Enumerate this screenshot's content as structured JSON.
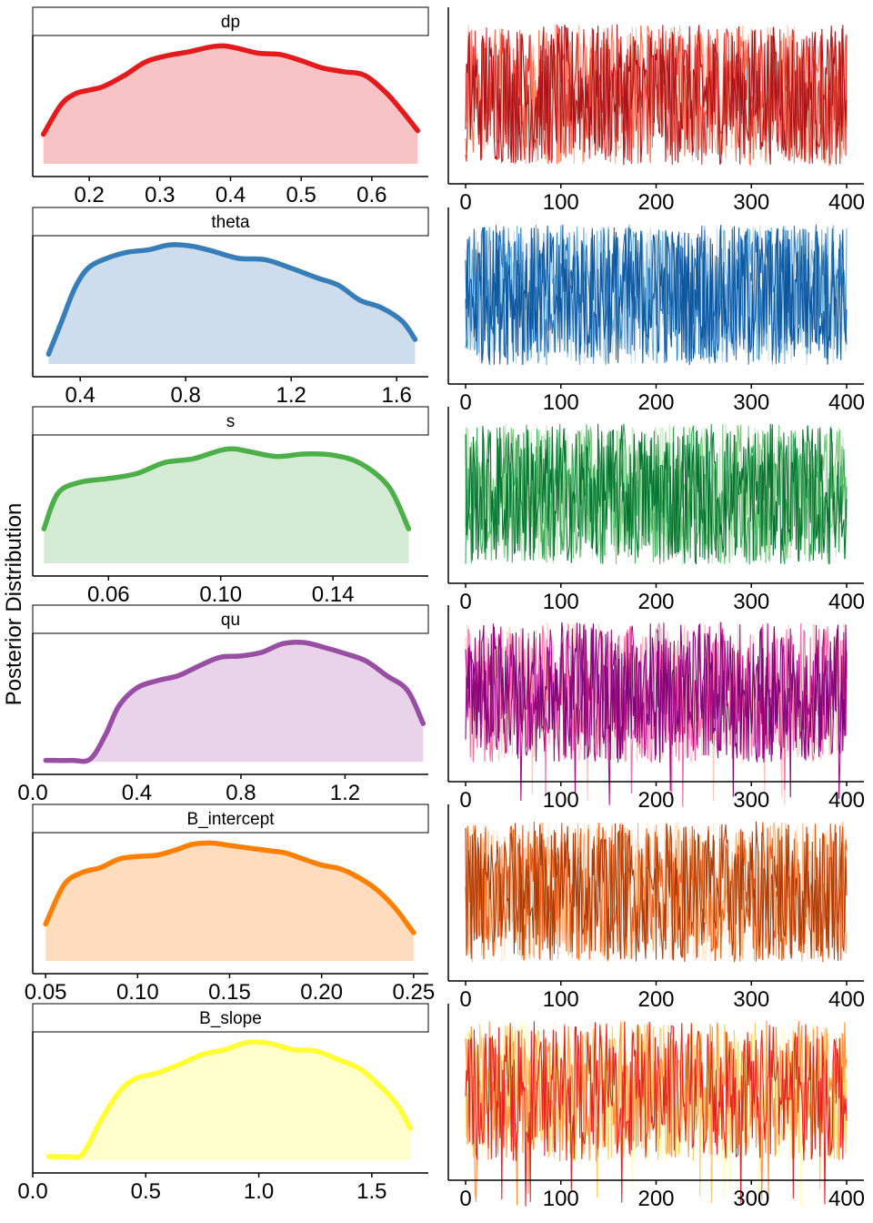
{
  "page": {
    "ylabel": "Posterior Distribution"
  },
  "chart_data": [
    {
      "type": "area",
      "role": "density",
      "title": "dp",
      "color": "#e41a1c",
      "fill": "#f7c3c4",
      "xlim": [
        0.12,
        0.68
      ],
      "xticks": [
        0.2,
        0.3,
        0.4,
        0.5,
        0.6
      ],
      "xtick_labels": [
        "0.2",
        "0.3",
        "0.4",
        "0.5",
        "0.6"
      ],
      "x": [
        0.135,
        0.16,
        0.18,
        0.2,
        0.22,
        0.25,
        0.28,
        0.31,
        0.34,
        0.37,
        0.39,
        0.41,
        0.44,
        0.47,
        0.5,
        0.53,
        0.56,
        0.59,
        0.62,
        0.64,
        0.665
      ],
      "y": [
        0.24,
        0.48,
        0.57,
        0.6,
        0.63,
        0.72,
        0.83,
        0.88,
        0.91,
        0.95,
        0.96,
        0.94,
        0.9,
        0.89,
        0.84,
        0.78,
        0.75,
        0.72,
        0.58,
        0.45,
        0.27
      ]
    },
    {
      "type": "line",
      "role": "trace",
      "colors": [
        "#fcbba1",
        "#fb6a4a",
        "#de2d26",
        "#a50f15"
      ],
      "xlim": [
        0,
        400
      ],
      "xticks": [
        0,
        100,
        200,
        300,
        400
      ],
      "xtick_labels": [
        "0",
        "100",
        "200",
        "300",
        "400"
      ],
      "n": 400
    },
    {
      "type": "area",
      "role": "density",
      "title": "theta",
      "color": "#377eb8",
      "fill": "#cdddee",
      "xlim": [
        0.22,
        1.72
      ],
      "xticks": [
        0.4,
        0.8,
        1.2,
        1.6
      ],
      "xtick_labels": [
        "0.4",
        "0.8",
        "1.2",
        "1.6"
      ],
      "x": [
        0.28,
        0.33,
        0.38,
        0.43,
        0.5,
        0.58,
        0.66,
        0.74,
        0.82,
        0.9,
        1.0,
        1.1,
        1.2,
        1.3,
        1.38,
        1.46,
        1.54,
        1.62,
        1.67
      ],
      "y": [
        0.08,
        0.35,
        0.62,
        0.78,
        0.86,
        0.91,
        0.93,
        0.97,
        0.96,
        0.92,
        0.86,
        0.85,
        0.78,
        0.7,
        0.64,
        0.52,
        0.46,
        0.35,
        0.2
      ]
    },
    {
      "type": "line",
      "role": "trace",
      "colors": [
        "#c6dbef",
        "#6baed6",
        "#2171b5",
        "#08519c"
      ],
      "xlim": [
        0,
        400
      ],
      "xticks": [
        0,
        100,
        200,
        300,
        400
      ],
      "xtick_labels": [
        "0",
        "100",
        "200",
        "300",
        "400"
      ],
      "n": 400
    },
    {
      "type": "area",
      "role": "density",
      "title": "s",
      "color": "#4daf4a",
      "fill": "#d4ecd3",
      "xlim": [
        0.033,
        0.174
      ],
      "xticks": [
        0.06,
        0.1,
        0.14
      ],
      "xtick_labels": [
        "0.06",
        "0.10",
        "0.14"
      ],
      "x": [
        0.037,
        0.042,
        0.05,
        0.06,
        0.07,
        0.08,
        0.09,
        0.1,
        0.105,
        0.11,
        0.12,
        0.13,
        0.14,
        0.15,
        0.16,
        0.167
      ],
      "y": [
        0.28,
        0.57,
        0.66,
        0.69,
        0.73,
        0.82,
        0.85,
        0.92,
        0.93,
        0.91,
        0.87,
        0.89,
        0.88,
        0.81,
        0.62,
        0.28
      ]
    },
    {
      "type": "line",
      "role": "trace",
      "colors": [
        "#c7e9c0",
        "#74c476",
        "#31a354",
        "#006d2c"
      ],
      "xlim": [
        0,
        400
      ],
      "xticks": [
        0,
        100,
        200,
        300,
        400
      ],
      "xtick_labels": [
        "0",
        "100",
        "200",
        "300",
        "400"
      ],
      "n": 400
    },
    {
      "type": "area",
      "role": "density",
      "title": "qu",
      "color": "#984ea3",
      "fill": "#e8d3eb",
      "xlim": [
        0.0,
        1.52
      ],
      "xticks": [
        0.0,
        0.4,
        0.8,
        1.2
      ],
      "xtick_labels": [
        "0.0",
        "0.4",
        "0.8",
        "1.2"
      ],
      "x": [
        0.05,
        0.15,
        0.22,
        0.28,
        0.33,
        0.4,
        0.48,
        0.56,
        0.64,
        0.72,
        0.8,
        0.88,
        0.96,
        1.04,
        1.12,
        1.2,
        1.28,
        1.36,
        1.44,
        1.5
      ],
      "y": [
        0.01,
        0.01,
        0.02,
        0.22,
        0.45,
        0.6,
        0.66,
        0.7,
        0.78,
        0.85,
        0.86,
        0.89,
        0.96,
        0.97,
        0.93,
        0.88,
        0.82,
        0.7,
        0.58,
        0.31
      ]
    },
    {
      "type": "line",
      "role": "trace",
      "colors": [
        "#fcc5c0",
        "#f768a1",
        "#ae017e",
        "#7a0177"
      ],
      "xlim": [
        0,
        400
      ],
      "xticks": [
        0,
        100,
        200,
        300,
        400
      ],
      "xtick_labels": [
        "0",
        "100",
        "200",
        "300",
        "400"
      ],
      "n": 400
    },
    {
      "type": "area",
      "role": "density",
      "title": "B_intercept",
      "color": "#ff7f00",
      "fill": "#ffdcbd",
      "xlim": [
        0.043,
        0.258
      ],
      "xticks": [
        0.05,
        0.1,
        0.15,
        0.2,
        0.25
      ],
      "xtick_labels": [
        "0.05",
        "0.10",
        "0.15",
        "0.20",
        "0.25"
      ],
      "x": [
        0.05,
        0.06,
        0.07,
        0.08,
        0.09,
        0.1,
        0.11,
        0.12,
        0.13,
        0.14,
        0.15,
        0.16,
        0.17,
        0.18,
        0.19,
        0.2,
        0.21,
        0.22,
        0.23,
        0.24,
        0.25
      ],
      "y": [
        0.3,
        0.62,
        0.72,
        0.76,
        0.83,
        0.85,
        0.86,
        0.9,
        0.95,
        0.96,
        0.94,
        0.92,
        0.9,
        0.88,
        0.83,
        0.78,
        0.75,
        0.68,
        0.58,
        0.43,
        0.23
      ]
    },
    {
      "type": "line",
      "role": "trace",
      "colors": [
        "#fee6ce",
        "#fdae6b",
        "#e6550d",
        "#a63603"
      ],
      "xlim": [
        0,
        400
      ],
      "xticks": [
        0,
        100,
        200,
        300,
        400
      ],
      "xtick_labels": [
        "0",
        "100",
        "200",
        "300",
        "400"
      ],
      "n": 400
    },
    {
      "type": "area",
      "role": "density",
      "title": "B_slope",
      "color": "#ffff33",
      "fill": "#ffffcc",
      "xlim": [
        0.0,
        1.75
      ],
      "xticks": [
        0.0,
        0.5,
        1.0,
        1.5
      ],
      "xtick_labels": [
        "0.0",
        "0.5",
        "1.0",
        "1.5"
      ],
      "x": [
        0.07,
        0.15,
        0.22,
        0.3,
        0.38,
        0.45,
        0.55,
        0.65,
        0.75,
        0.85,
        0.95,
        1.05,
        1.15,
        1.25,
        1.35,
        1.45,
        1.55,
        1.62,
        1.67
      ],
      "y": [
        0.03,
        0.03,
        0.05,
        0.32,
        0.55,
        0.66,
        0.71,
        0.78,
        0.86,
        0.9,
        0.96,
        0.95,
        0.9,
        0.89,
        0.82,
        0.74,
        0.58,
        0.43,
        0.26
      ]
    },
    {
      "type": "line",
      "role": "trace",
      "colors": [
        "#ffffb2",
        "#fecc5c",
        "#fd8d3c",
        "#e31a1c"
      ],
      "xlim": [
        0,
        400
      ],
      "xticks": [
        0,
        100,
        200,
        300,
        400
      ],
      "xtick_labels": [
        "0",
        "100",
        "200",
        "300",
        "400"
      ],
      "n": 400
    }
  ]
}
